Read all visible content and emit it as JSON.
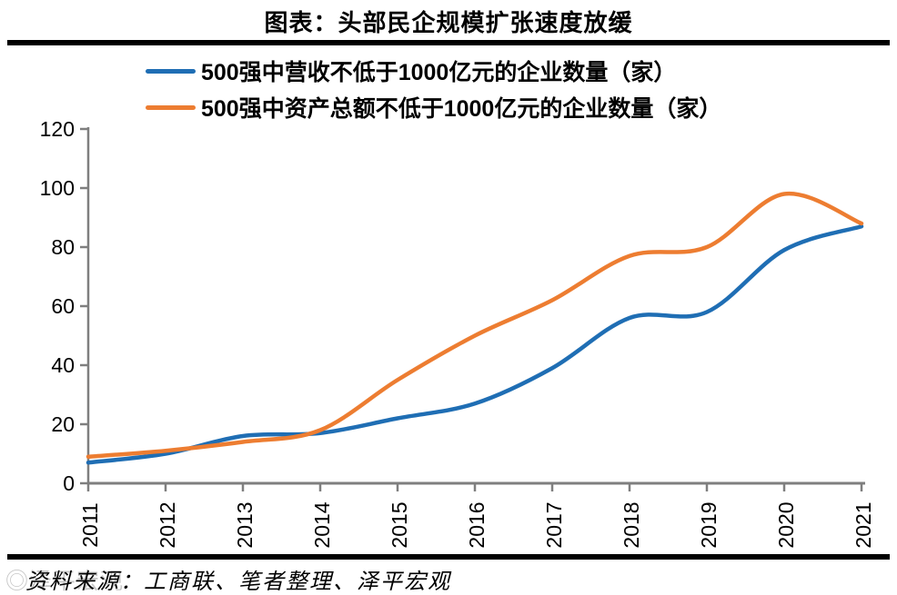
{
  "chart_data": {
    "type": "line",
    "title": "图表：头部民企规模扩张速度放缓",
    "categories": [
      "2011",
      "2012",
      "2013",
      "2014",
      "2015",
      "2016",
      "2017",
      "2018",
      "2019",
      "2020",
      "2021"
    ],
    "series": [
      {
        "name": "500强中营收不低于1000亿元的企业数量（家）",
        "color": "#1f6eb4",
        "values": [
          7,
          10,
          16,
          17,
          22,
          27,
          39,
          56,
          58,
          79,
          87
        ]
      },
      {
        "name": "500强中资产总额不低于1000亿元的企业数量（家）",
        "color": "#ed7d31",
        "values": [
          9,
          11,
          14,
          18,
          35,
          50,
          62,
          77,
          80,
          98,
          88
        ]
      }
    ],
    "ylim": [
      0,
      120
    ],
    "yticks": [
      0,
      20,
      40,
      60,
      80,
      100,
      120
    ],
    "grid": "off",
    "legend_position": "top-left",
    "axis_color": "#7f7f7f"
  },
  "footer": {
    "source": "资料来源：工商联、笔者整理、泽平宏观"
  },
  "watermark": {
    "text": "◎泽平宏观"
  }
}
